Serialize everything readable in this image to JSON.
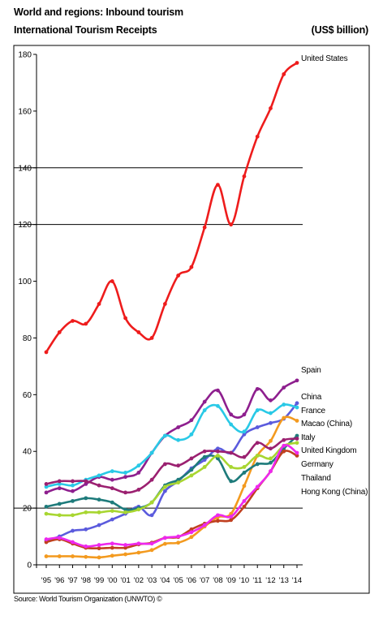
{
  "header": {
    "title": "World and regions: Inbound tourism",
    "subtitle": "International Tourism Receipts",
    "units": "(US$ billion)"
  },
  "footer": {
    "source": "Source: World Tourism Organization (UNWTO) ©"
  },
  "chart_data": {
    "type": "line",
    "title": "International Tourism Receipts",
    "ylabel": "US$ billion",
    "ylim": [
      0,
      180
    ],
    "yticks": [
      0,
      20,
      40,
      60,
      80,
      100,
      120,
      140,
      160,
      180
    ],
    "grid": "horizontal at 20, 120, 140",
    "x": [
      "'95",
      "'96",
      "'97",
      "'98",
      "'99",
      "'00",
      "'01",
      "'02",
      "'03",
      "'04",
      "'05",
      "'06",
      "'07",
      "'08",
      "'09",
      "'10",
      "'11",
      "'12",
      "'13",
      "'14"
    ],
    "series": [
      {
        "name": "United States",
        "color": "#ee1c1c",
        "values": [
          75,
          82,
          86,
          85,
          92,
          100,
          87,
          82,
          80,
          92,
          102,
          105,
          119,
          134,
          120,
          137,
          151,
          161,
          173,
          177
        ]
      },
      {
        "name": "Spain",
        "color": "#8e1f8e",
        "values": [
          25.5,
          27,
          26,
          28.5,
          31,
          30,
          31,
          32.5,
          39.5,
          45.5,
          48.5,
          51,
          57.5,
          61.5,
          53,
          53,
          62,
          58,
          62.5,
          65
        ]
      },
      {
        "name": "China",
        "color": "#5b5bdd",
        "values": [
          8.5,
          10,
          12,
          12.5,
          14,
          16,
          18,
          20.5,
          17.5,
          26,
          29.5,
          34,
          37,
          41,
          39.5,
          46,
          48.5,
          50,
          51.5,
          57
        ]
      },
      {
        "name": "France",
        "color": "#29c9e6",
        "values": [
          27.5,
          28.5,
          28,
          30,
          31.5,
          33,
          32.5,
          35,
          39.5,
          45.5,
          44,
          46,
          54.5,
          56,
          49.5,
          47,
          54.5,
          53.5,
          56.5,
          55.5
        ]
      },
      {
        "name": "Macao (China)",
        "color": "#f39a1f",
        "values": [
          3,
          3,
          3,
          2.8,
          2.6,
          3.2,
          3.7,
          4.3,
          5.2,
          7.4,
          7.8,
          9.8,
          13.5,
          16.8,
          18,
          27.8,
          38.5,
          43.7,
          51.8,
          50.8
        ]
      },
      {
        "name": "Italy",
        "color": "#1e7b7b",
        "values": [
          20.5,
          21.5,
          22.5,
          23.5,
          23,
          22,
          19.5,
          20,
          22,
          28,
          30,
          33.5,
          38,
          37.5,
          29.5,
          32.5,
          35.5,
          36,
          41,
          45.5
        ]
      },
      {
        "name": "United Kingdom",
        "color": "#a8d631",
        "values": [
          18,
          17.5,
          17.5,
          18.5,
          18.5,
          19,
          18.5,
          19.5,
          22,
          27.5,
          29,
          31.5,
          34.5,
          38.5,
          34.5,
          34.5,
          38.5,
          37.5,
          42,
          43
        ]
      },
      {
        "name": "Germany",
        "color": "#9b2070",
        "values": [
          28.5,
          29.5,
          29.5,
          29.5,
          28,
          27,
          25.5,
          26.5,
          30,
          35.5,
          35,
          37.5,
          40,
          40,
          39.5,
          38,
          43,
          41,
          44,
          44.5
        ]
      },
      {
        "name": "Thailand",
        "color": "#c04020",
        "values": [
          8,
          9,
          7.5,
          6,
          5.8,
          6,
          6,
          7.2,
          7.8,
          9.5,
          9.8,
          12.5,
          14.5,
          15.5,
          15.8,
          20.5,
          27,
          33,
          40,
          38.5
        ]
      },
      {
        "name": "Hong Kong (China)",
        "color": "#ee28ee",
        "values": [
          9,
          9.5,
          8,
          6.5,
          7,
          7.5,
          7,
          7.5,
          7.5,
          9.5,
          10,
          11.5,
          14,
          17.5,
          17,
          22.5,
          27.5,
          33,
          42,
          39.5
        ]
      }
    ]
  }
}
